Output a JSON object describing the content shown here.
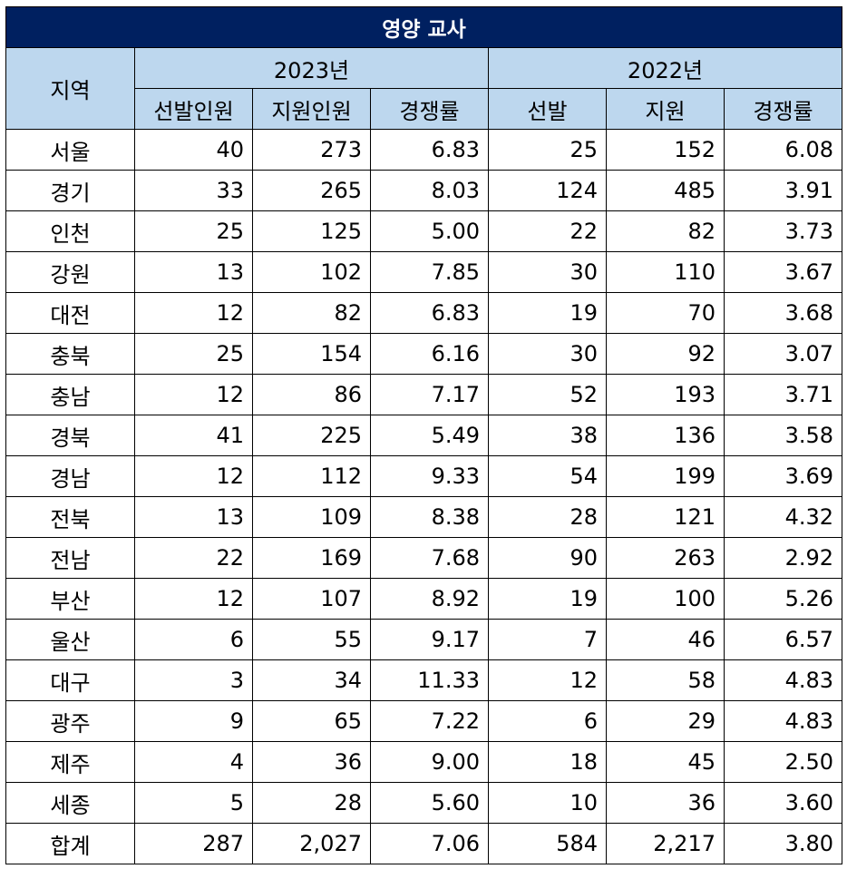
{
  "title": "영양 교사",
  "header": {
    "region_label": "지역",
    "year_2023": "2023년",
    "year_2022": "2022년",
    "sub_2023": [
      "선발인원",
      "지원인원",
      "경쟁률"
    ],
    "sub_2022": [
      "선발",
      "지원",
      "경쟁률"
    ]
  },
  "rows": [
    {
      "region": "서울",
      "s23": "40",
      "a23": "273",
      "r23": "6.83",
      "s22": "25",
      "a22": "152",
      "r22": "6.08"
    },
    {
      "region": "경기",
      "s23": "33",
      "a23": "265",
      "r23": "8.03",
      "s22": "124",
      "a22": "485",
      "r22": "3.91"
    },
    {
      "region": "인천",
      "s23": "25",
      "a23": "125",
      "r23": "5.00",
      "s22": "22",
      "a22": "82",
      "r22": "3.73"
    },
    {
      "region": "강원",
      "s23": "13",
      "a23": "102",
      "r23": "7.85",
      "s22": "30",
      "a22": "110",
      "r22": "3.67"
    },
    {
      "region": "대전",
      "s23": "12",
      "a23": "82",
      "r23": "6.83",
      "s22": "19",
      "a22": "70",
      "r22": "3.68"
    },
    {
      "region": "충북",
      "s23": "25",
      "a23": "154",
      "r23": "6.16",
      "s22": "30",
      "a22": "92",
      "r22": "3.07"
    },
    {
      "region": "충남",
      "s23": "12",
      "a23": "86",
      "r23": "7.17",
      "s22": "52",
      "a22": "193",
      "r22": "3.71"
    },
    {
      "region": "경북",
      "s23": "41",
      "a23": "225",
      "r23": "5.49",
      "s22": "38",
      "a22": "136",
      "r22": "3.58"
    },
    {
      "region": "경남",
      "s23": "12",
      "a23": "112",
      "r23": "9.33",
      "s22": "54",
      "a22": "199",
      "r22": "3.69"
    },
    {
      "region": "전북",
      "s23": "13",
      "a23": "109",
      "r23": "8.38",
      "s22": "28",
      "a22": "121",
      "r22": "4.32"
    },
    {
      "region": "전남",
      "s23": "22",
      "a23": "169",
      "r23": "7.68",
      "s22": "90",
      "a22": "263",
      "r22": "2.92"
    },
    {
      "region": "부산",
      "s23": "12",
      "a23": "107",
      "r23": "8.92",
      "s22": "19",
      "a22": "100",
      "r22": "5.26"
    },
    {
      "region": "울산",
      "s23": "6",
      "a23": "55",
      "r23": "9.17",
      "s22": "7",
      "a22": "46",
      "r22": "6.57"
    },
    {
      "region": "대구",
      "s23": "3",
      "a23": "34",
      "r23": "11.33",
      "s22": "12",
      "a22": "58",
      "r22": "4.83"
    },
    {
      "region": "광주",
      "s23": "9",
      "a23": "65",
      "r23": "7.22",
      "s22": "6",
      "a22": "29",
      "r22": "4.83"
    },
    {
      "region": "제주",
      "s23": "4",
      "a23": "36",
      "r23": "9.00",
      "s22": "18",
      "a22": "45",
      "r22": "2.50"
    },
    {
      "region": "세종",
      "s23": "5",
      "a23": "28",
      "r23": "5.60",
      "s22": "10",
      "a22": "36",
      "r22": "3.60"
    },
    {
      "region": "합계",
      "s23": "287",
      "a23": "2,027",
      "r23": "7.06",
      "s22": "584",
      "a22": "2,217",
      "r22": "3.80"
    }
  ],
  "colors": {
    "title_background": "#002060",
    "title_text": "#ffffff",
    "header_background": "#BDD7EE",
    "grid": "#000000"
  }
}
